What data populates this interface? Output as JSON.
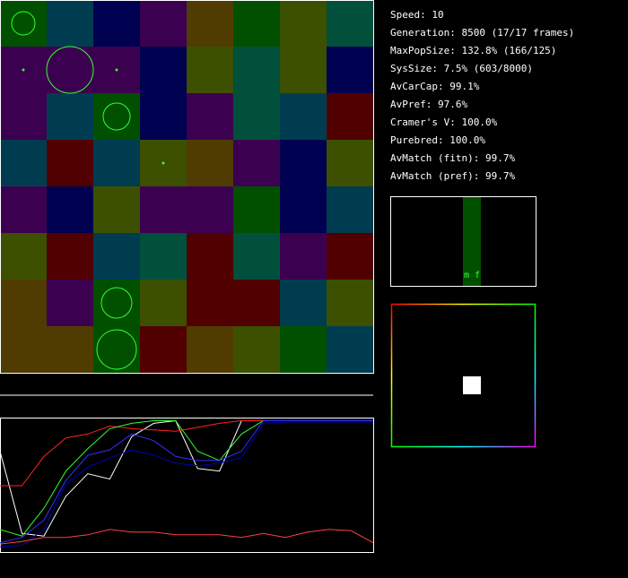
{
  "stats": [
    "Speed: 10",
    "Generation: 8500 (17/17 frames)",
    "MaxPopSize: 132.8% (166/125)",
    "SysSize: 7.5% (603/8000)",
    "AvCarCap: 99.1%",
    "AvPref: 97.6%",
    "Cramer's V: 100.0%",
    "Purebred: 100.0%",
    "AvMatch (fitn): 99.7%",
    "AvMatch (pref): 99.7%"
  ],
  "sex_label": "m f",
  "world": {
    "cells": [
      [
        "#005000",
        "#003c50",
        "#000050",
        "#3c0050",
        "#503c00",
        "#005000",
        "#3c5000",
        "#00503c"
      ],
      [
        "#3c0050",
        "#3c0050",
        "#3c0050",
        "#000050",
        "#3c5000",
        "#00503c",
        "#3c5000",
        "#000050"
      ],
      [
        "#3c0050",
        "#003c50",
        "#005000",
        "#000050",
        "#3c0050",
        "#00503c",
        "#003c50",
        "#500000"
      ],
      [
        "#003c50",
        "#500000",
        "#003c50",
        "#3c5000",
        "#503c00",
        "#3c0050",
        "#000050",
        "#3c5000"
      ],
      [
        "#3c0050",
        "#000050",
        "#3c5000",
        "#3c0050",
        "#3c0050",
        "#005000",
        "#000050",
        "#003c50"
      ],
      [
        "#3c5000",
        "#500000",
        "#003c50",
        "#00503c",
        "#500000",
        "#00503c",
        "#3c0050",
        "#500000"
      ],
      [
        "#503c00",
        "#3c0050",
        "#005000",
        "#3c5000",
        "#500000",
        "#500000",
        "#003c50",
        "#3c5000"
      ],
      [
        "#503c00",
        "#503c00",
        "#005000",
        "#500000",
        "#503c00",
        "#3c5000",
        "#005000",
        "#003c50"
      ]
    ]
  },
  "history": {
    "series": [
      {
        "color": "#ffffff",
        "values": [
          76,
          14,
          12,
          42,
          59,
          55,
          87,
          97,
          99,
          63,
          61,
          99,
          99,
          99,
          99,
          99,
          99,
          99
        ]
      },
      {
        "color": "#ff2020",
        "values": [
          50,
          50,
          72,
          86,
          89,
          95,
          93,
          92,
          91,
          94,
          97,
          99,
          99,
          99,
          99,
          99,
          99,
          99
        ]
      },
      {
        "color": "#30ff30",
        "values": [
          17,
          12,
          33,
          61,
          78,
          93,
          97,
          99,
          99,
          76,
          69,
          89,
          99,
          99,
          99,
          99,
          99,
          99
        ]
      },
      {
        "color": "#3030ff",
        "values": [
          7,
          11,
          24,
          54,
          73,
          77,
          89,
          84,
          72,
          69,
          69,
          76,
          99,
          99,
          99,
          99,
          99,
          99
        ]
      },
      {
        "color": "#0000c0",
        "values": [
          4,
          5,
          17,
          51,
          64,
          71,
          77,
          73,
          67,
          65,
          67,
          71,
          97,
          98,
          98,
          98,
          98,
          98
        ]
      },
      {
        "color": "#ff4040",
        "values": [
          6,
          8,
          11,
          11,
          13,
          17,
          15,
          15,
          13,
          13,
          13,
          11,
          14,
          11,
          15,
          17,
          16,
          7
        ]
      }
    ]
  }
}
